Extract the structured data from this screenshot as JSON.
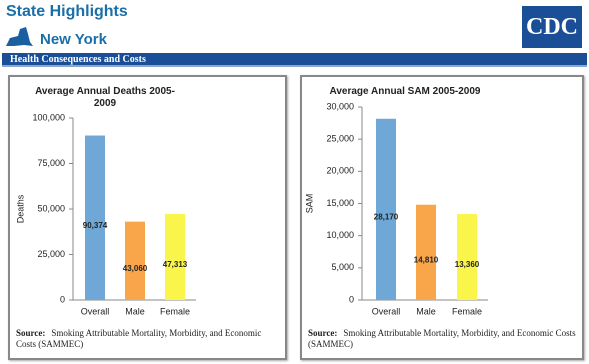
{
  "header": {
    "title": "State Highlights",
    "state": "New York",
    "logo": "CDC",
    "section": "Health Consequences and Costs"
  },
  "chart_data": [
    {
      "type": "bar",
      "title": "Average Annual Deaths 2005-2009",
      "y_label": "Deaths",
      "categories": [
        "Overall",
        "Male",
        "Female"
      ],
      "values": [
        90374,
        43060,
        47313
      ],
      "value_labels": [
        "90,374",
        "43,060",
        "47,313"
      ],
      "colors": [
        "#6fa8d6",
        "#f9a64a",
        "#f9f54a"
      ],
      "ylim": [
        0,
        100000
      ],
      "yticks": [
        0,
        {
          "value": 25000,
          "label": "25,000"
        },
        {
          "value": 50000,
          "label": "50,000"
        },
        {
          "value": 75000,
          "label": "75,000"
        },
        {
          "value": 100000,
          "label": "100,000"
        }
      ],
      "source_label": "Source:",
      "source": "Smoking Attributable Mortality, Morbidity, and Economic Costs (SAMMEC)"
    },
    {
      "type": "bar",
      "title": "Average Annual SAM 2005-2009",
      "y_label": "SAM",
      "categories": [
        "Overall",
        "Male",
        "Female"
      ],
      "values": [
        28170,
        14810,
        13360
      ],
      "value_labels": [
        "28,170",
        "14,810",
        "13,360"
      ],
      "colors": [
        "#6fa8d6",
        "#f9a64a",
        "#f9f54a"
      ],
      "ylim": [
        0,
        30000
      ],
      "yticks": [
        0,
        {
          "value": 5000,
          "label": "5,000"
        },
        {
          "value": 10000,
          "label": "10,000"
        },
        {
          "value": 15000,
          "label": "15,000"
        },
        {
          "value": 20000,
          "label": "20,000"
        },
        {
          "value": 25000,
          "label": "25,000"
        },
        {
          "value": 30000,
          "label": "30,000"
        }
      ],
      "source_label": "Source:",
      "source": "Smoking Attributable Mortality, Morbidity, and Economic Costs (SAMMEC)"
    }
  ]
}
